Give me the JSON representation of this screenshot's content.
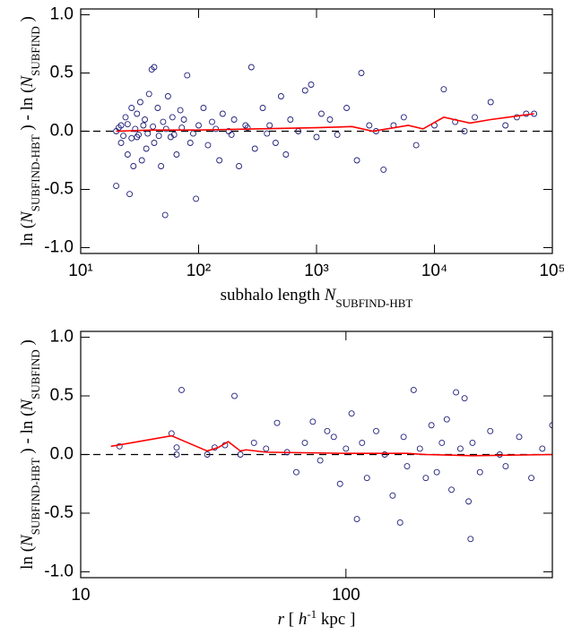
{
  "chart_data": [
    {
      "type": "scatter",
      "xscale": "log",
      "xlim": [
        10,
        100000
      ],
      "ylim": [
        -1.05,
        1.05
      ],
      "xticks": [
        {
          "value": 10,
          "label": "10¹"
        },
        {
          "value": 100,
          "label": "10²"
        },
        {
          "value": 1000,
          "label": "10³"
        },
        {
          "value": 10000,
          "label": "10⁴"
        },
        {
          "value": 100000,
          "label": "10⁵"
        }
      ],
      "yticks": [
        {
          "value": 1.0,
          "label": "1.0"
        },
        0.5,
        {
          "value": 0.0,
          "label": "0.0"
        },
        -0.5,
        {
          "value": -1.0,
          "label": "-1.0"
        }
      ],
      "zero_line": true,
      "x_label": [
        {
          "text": "subhalo length "
        },
        {
          "text": "N",
          "style": "italic"
        },
        {
          "text": "SUBFIND-HBT",
          "style": "sub"
        }
      ],
      "y_label": [
        {
          "text": "ln ("
        },
        {
          "text": "N",
          "style": "italic"
        },
        {
          "text": "SUBFIND-HBT",
          "style": "sub"
        },
        {
          "text": " ) - ln ("
        },
        {
          "text": "N",
          "style": "italic"
        },
        {
          "text": "SUBFIND",
          "style": "sub"
        },
        {
          "text": " )"
        }
      ],
      "series": [
        {
          "type": "scatter",
          "color": "#1f1f7a",
          "x": [
            20,
            22,
            22,
            24,
            25,
            26,
            27,
            28,
            30,
            30,
            32,
            33,
            35,
            36,
            38,
            40,
            42,
            42,
            45,
            48,
            50,
            52,
            55,
            58,
            60,
            65,
            70,
            75,
            80,
            85,
            95,
            100,
            110,
            120,
            130,
            150,
            160,
            180,
            200,
            220,
            250,
            280,
            300,
            350,
            400,
            450,
            500,
            550,
            600,
            700,
            800,
            900,
            1000,
            1100,
            1300,
            1500,
            1800,
            2200,
            2400,
            2800,
            3200,
            3700,
            4500,
            5500,
            7000,
            10000,
            12000,
            15000,
            18000,
            22000,
            30000,
            40000,
            50000,
            60000,
            70000,
            20,
            21,
            23,
            25,
            27,
            29,
            31,
            34,
            37,
            41,
            46,
            53,
            62,
            72,
            90,
            140,
            190,
            260,
            380
          ],
          "values": [
            -0.47,
            0.05,
            -0.1,
            0.12,
            -0.2,
            -0.54,
            0.2,
            -0.3,
            0.15,
            -0.05,
            0.25,
            -0.25,
            0.1,
            -0.15,
            0.32,
            0.53,
            0.55,
            -0.1,
            0.2,
            -0.3,
            0.08,
            -0.72,
            0.3,
            -0.05,
            0.12,
            -0.2,
            0.18,
            0.1,
            0.48,
            -0.1,
            -0.58,
            0.05,
            0.2,
            -0.12,
            0.08,
            -0.25,
            0.15,
            0.0,
            0.1,
            -0.3,
            0.05,
            0.55,
            -0.15,
            0.2,
            0.05,
            -0.1,
            0.3,
            -0.2,
            0.1,
            0.0,
            0.35,
            0.4,
            -0.05,
            0.15,
            0.1,
            -0.03,
            0.2,
            -0.25,
            0.5,
            0.05,
            0.0,
            -0.33,
            0.05,
            0.12,
            -0.12,
            0.05,
            0.36,
            0.08,
            0.0,
            0.12,
            0.25,
            0.05,
            0.12,
            0.15,
            0.15,
            0.0,
            0.03,
            -0.04,
            0.06,
            -0.06,
            0.02,
            -0.03,
            0.05,
            -0.02,
            0.04,
            -0.04,
            0.02,
            -0.03,
            0.03,
            -0.02,
            0.02,
            -0.03,
            0.03,
            -0.02
          ]
        },
        {
          "type": "line",
          "color": "#ff0000",
          "x": [
            20,
            40,
            100,
            300,
            1000,
            2000,
            3000,
            6000,
            8000,
            12000,
            20000,
            30000,
            50000,
            70000
          ],
          "values": [
            0.0,
            0.01,
            0.01,
            0.02,
            0.03,
            0.04,
            0.0,
            0.05,
            0.02,
            0.12,
            0.07,
            0.1,
            0.13,
            0.15
          ]
        }
      ]
    },
    {
      "type": "scatter",
      "xscale": "log",
      "xlim": [
        10,
        600
      ],
      "ylim": [
        -1.05,
        1.05
      ],
      "xticks": [
        10,
        100
      ],
      "yticks": [
        {
          "value": 1.0,
          "label": "1.0"
        },
        0.5,
        {
          "value": 0.0,
          "label": "0.0"
        },
        -0.5,
        {
          "value": -1.0,
          "label": "-1.0"
        }
      ],
      "zero_line": true,
      "x_label": [
        {
          "text": "r",
          "style": "italic"
        },
        {
          "text": " [ "
        },
        {
          "text": "h",
          "style": "italic"
        },
        {
          "text": "-1",
          "style": "sup"
        },
        {
          "text": " kpc ]"
        }
      ],
      "y_label": [
        {
          "text": "ln ("
        },
        {
          "text": "N",
          "style": "italic"
        },
        {
          "text": "SUBFIND-HBT",
          "style": "sub"
        },
        {
          "text": " ) - ln ("
        },
        {
          "text": "N",
          "style": "italic"
        },
        {
          "text": "SUBFIND",
          "style": "sub"
        },
        {
          "text": " )"
        }
      ],
      "series": [
        {
          "type": "scatter",
          "color": "#1f1f7a",
          "x": [
            14,
            22,
            23,
            23,
            24,
            30,
            32,
            35,
            38,
            40,
            45,
            50,
            55,
            60,
            65,
            70,
            75,
            80,
            85,
            90,
            95,
            100,
            105,
            110,
            115,
            120,
            130,
            140,
            150,
            160,
            165,
            170,
            180,
            190,
            200,
            210,
            220,
            230,
            240,
            250,
            260,
            270,
            280,
            290,
            295,
            300,
            320,
            350,
            380,
            400,
            450,
            500,
            550,
            600
          ],
          "values": [
            0.07,
            0.18,
            0.06,
            0.0,
            0.55,
            0.0,
            0.06,
            0.08,
            0.5,
            0.0,
            0.1,
            0.05,
            0.27,
            0.02,
            -0.15,
            0.1,
            0.28,
            -0.05,
            0.2,
            0.15,
            -0.25,
            0.05,
            0.35,
            -0.55,
            0.1,
            -0.2,
            0.2,
            0.0,
            -0.35,
            -0.58,
            0.15,
            -0.1,
            0.55,
            0.05,
            -0.2,
            0.25,
            -0.15,
            0.1,
            0.3,
            -0.3,
            0.53,
            0.05,
            0.48,
            -0.4,
            -0.72,
            0.1,
            -0.15,
            0.2,
            0.0,
            -0.1,
            0.15,
            -0.2,
            0.05,
            0.25
          ]
        },
        {
          "type": "line",
          "color": "#ff0000",
          "x": [
            13,
            22,
            30,
            33,
            36,
            40,
            42,
            50,
            100,
            170,
            200,
            300,
            600
          ],
          "values": [
            0.07,
            0.16,
            0.03,
            0.06,
            0.11,
            0.03,
            0.04,
            0.02,
            0.01,
            0.01,
            0.0,
            -0.01,
            0.0
          ]
        }
      ]
    }
  ]
}
